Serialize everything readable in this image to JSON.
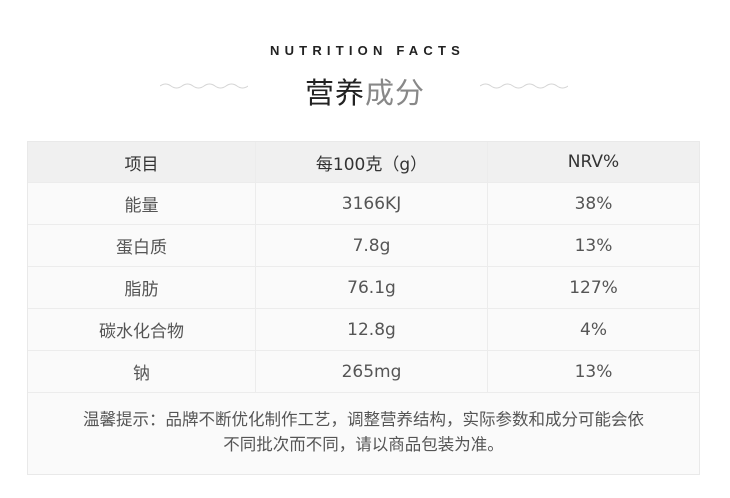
{
  "header": {
    "en_title": "NUTRITION FACTS",
    "cn_title_dark": "营养",
    "cn_title_light": "成分"
  },
  "table": {
    "columns": [
      "项目",
      "每100克（g）",
      "NRV%"
    ],
    "rows": [
      [
        "能量",
        "3166KJ",
        "38%"
      ],
      [
        "蛋白质",
        "7.8g",
        "13%"
      ],
      [
        "脂肪",
        "76.1g",
        "127%"
      ],
      [
        "碳水化合物",
        "12.8g",
        "4%"
      ],
      [
        "钠",
        "265mg",
        "13%"
      ]
    ]
  },
  "note": {
    "line1": "温馨提示：品牌不断优化制作工艺，调整营养结构，实际参数和成分可能会依",
    "line2": "不同批次而不同，请以商品包装为准。"
  },
  "colors": {
    "header_row_bg": "#f0f0f0",
    "row_bg": "#fafafa",
    "title_dark": "#222222",
    "title_light": "#888888"
  }
}
